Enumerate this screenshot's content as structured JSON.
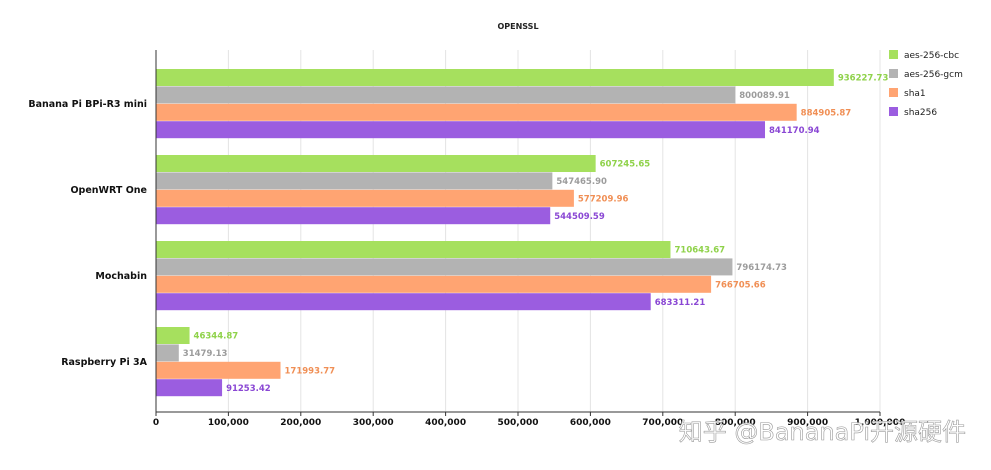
{
  "chart_data": {
    "type": "bar",
    "orientation": "horizontal",
    "title": "OPENSSL",
    "xlabel": "",
    "ylabel": "",
    "xlim": [
      0,
      1000000
    ],
    "xticks": [
      0,
      100000,
      200000,
      300000,
      400000,
      500000,
      600000,
      700000,
      800000,
      900000,
      1000000
    ],
    "xtick_labels": [
      "0",
      "100,000",
      "200,000",
      "300,000",
      "400,000",
      "500,000",
      "600,000",
      "700,000",
      "800,000",
      "900,000",
      "1,000,000"
    ],
    "grid": "vertical",
    "legend_position": "top-right",
    "categories": [
      "Banana Pi BPi-R3 mini",
      "OpenWRT One",
      "Mochabin",
      "Raspberry Pi 3A"
    ],
    "series": [
      {
        "name": "aes-256-cbc",
        "color": "#a6e05e",
        "label_color": "#8fd24a",
        "values": [
          936227.73,
          607245.65,
          710643.67,
          46344.87
        ],
        "labels": [
          "936227.73",
          "607245.65",
          "710643.67",
          "46344.87"
        ]
      },
      {
        "name": "aes-256-gcm",
        "color": "#b3b3b3",
        "label_color": "#9c9c9c",
        "values": [
          800089.91,
          547465.9,
          796174.73,
          31479.13
        ],
        "labels": [
          "800089.91",
          "547465.90",
          "796174.73",
          "31479.13"
        ]
      },
      {
        "name": "sha1",
        "color": "#ffa472",
        "label_color": "#f08f55",
        "values": [
          884905.87,
          577209.96,
          766705.66,
          171993.77
        ],
        "labels": [
          "884905.87",
          "577209.96",
          "766705.66",
          "171993.77"
        ]
      },
      {
        "name": "sha256",
        "color": "#9b5de0",
        "label_color": "#8a47d4",
        "values": [
          841170.94,
          544509.59,
          683311.21,
          91253.42
        ],
        "labels": [
          "841170.94",
          "544509.59",
          "683311.21",
          "91253.42"
        ]
      }
    ]
  },
  "watermark": "知乎 @BananaPi开源硬件"
}
